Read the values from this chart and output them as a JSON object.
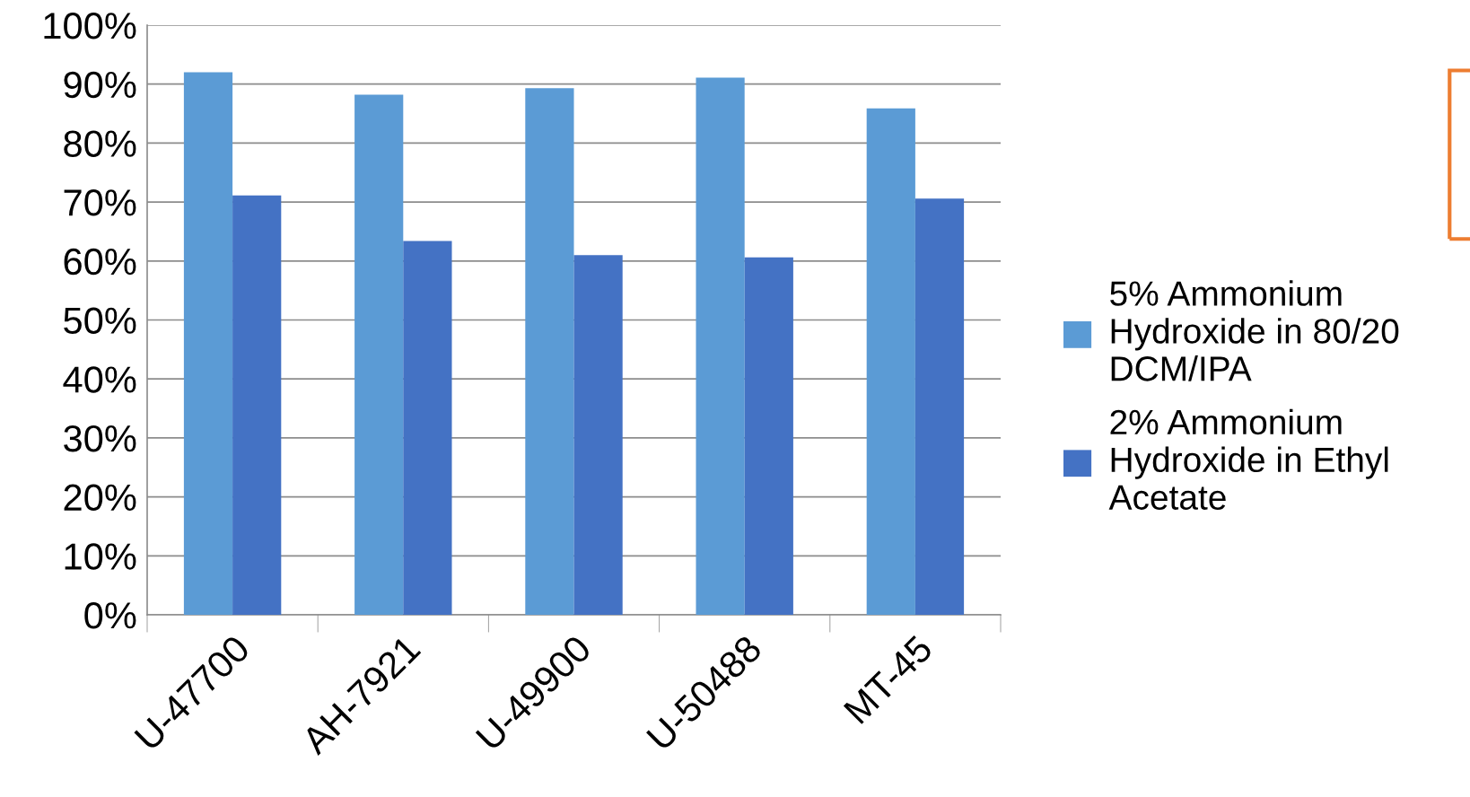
{
  "chart_data": {
    "type": "bar",
    "categories": [
      "U-47700",
      "AH-7921",
      "U-49900",
      "U-50488",
      "MT-45"
    ],
    "series": [
      {
        "name": "5% Ammonium Hydroxide in 80/20 DCM/IPA",
        "color": "#5b9bd5",
        "values": [
          92,
          88.2,
          89.3,
          91.1,
          85.9
        ]
      },
      {
        "name": "2% Ammonium Hydroxide in Ethyl Acetate",
        "color": "#4472c4",
        "values": [
          71.1,
          63.4,
          61.0,
          60.6,
          70.6
        ]
      }
    ],
    "ylim": [
      0,
      100
    ],
    "yticks": [
      {
        "value": 0,
        "label": "0%"
      },
      {
        "value": 10,
        "label": "10%"
      },
      {
        "value": 20,
        "label": "20%"
      },
      {
        "value": 30,
        "label": "30%"
      },
      {
        "value": 40,
        "label": "40%"
      },
      {
        "value": 50,
        "label": "50%"
      },
      {
        "value": 60,
        "label": "60%"
      },
      {
        "value": 70,
        "label": "70%"
      },
      {
        "value": 80,
        "label": "80%"
      },
      {
        "value": 90,
        "label": "90%"
      },
      {
        "value": 100,
        "label": "100%"
      }
    ],
    "grid": "y",
    "legend": "right"
  }
}
